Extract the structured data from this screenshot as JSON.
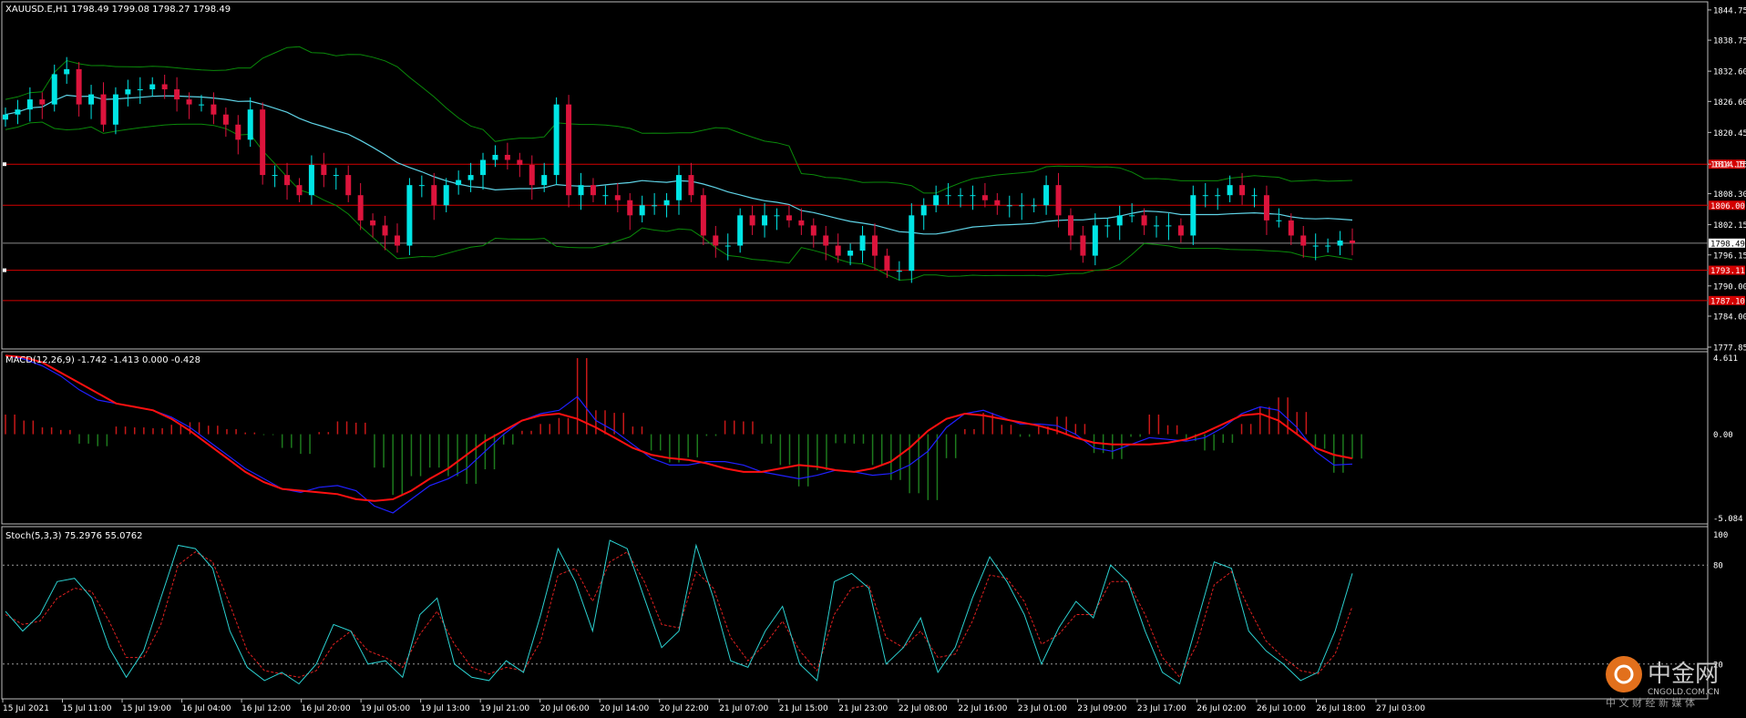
{
  "main_panel": {
    "header": "XAUUSD.E,H1  1798.49 1799.08 1798.27 1798.49",
    "price_axis": [
      "1844.75",
      "1838.75",
      "1832.60",
      "1826.60",
      "1820.45",
      "1814.15",
      "1808.30",
      "1802.15",
      "1796.15",
      "1790.00",
      "1784.00",
      "1777.85"
    ],
    "current_price": "1798.49",
    "levels": [
      {
        "label": "1814.15",
        "value": 1814.15
      },
      {
        "label": "1806.00",
        "value": 1806.0
      },
      {
        "label": "1793.11",
        "value": 1793.11
      },
      {
        "label": "1787.10",
        "value": 1787.1
      }
    ]
  },
  "macd_panel": {
    "header": "MACD(12,26,9) -1.742 -1.413 0.000 -0.428",
    "axis": [
      "4.611",
      "0.00",
      "-5.084"
    ]
  },
  "stoch_panel": {
    "header": "Stoch(5,3,3) 75.2976 55.0762",
    "axis": [
      "100",
      "80",
      "20"
    ]
  },
  "time_axis": [
    "15 Jul 2021",
    "15 Jul 11:00",
    "15 Jul 19:00",
    "16 Jul 04:00",
    "16 Jul 12:00",
    "16 Jul 20:00",
    "19 Jul 05:00",
    "19 Jul 13:00",
    "19 Jul 21:00",
    "20 Jul 06:00",
    "20 Jul 14:00",
    "20 Jul 22:00",
    "21 Jul 07:00",
    "21 Jul 15:00",
    "21 Jul 23:00",
    "22 Jul 08:00",
    "22 Jul 16:00",
    "23 Jul 01:00",
    "23 Jul 09:00",
    "23 Jul 17:00",
    "26 Jul 02:00",
    "26 Jul 10:00",
    "26 Jul 18:00",
    "27 Jul 03:00"
  ],
  "watermark": {
    "cn": "中金网",
    "en": "CNGOLD.COM.CN",
    "sub": "中 文 财 经 新 媒 体"
  },
  "colors": {
    "bull": "#00e5e5",
    "bear": "#dc143c",
    "bands": "#0a8a0a",
    "ma": "#5fd3e6",
    "level": "#d40000",
    "macd_pos": "#c81818",
    "macd_neg": "#1d7a1d",
    "macd_line": "#2020ff",
    "signal": "#ff1010",
    "stoch_main": "#2bd0d0",
    "stoch_signal": "#e02020"
  },
  "chart_data": [
    {
      "type": "candlestick",
      "title": "XAUUSD.E,H1",
      "ylim": [
        1777.85,
        1846.0
      ],
      "closes": [
        1824,
        1825,
        1827,
        1826,
        1832,
        1833,
        1826,
        1828,
        1822,
        1828,
        1829,
        1829,
        1830,
        1829,
        1827,
        1826,
        1826,
        1824,
        1822,
        1819,
        1825,
        1812,
        1812,
        1810,
        1808,
        1814,
        1812,
        1812,
        1808,
        1803,
        1802,
        1800,
        1798,
        1810,
        1810,
        1806,
        1810,
        1811,
        1812,
        1815,
        1816,
        1815,
        1814,
        1810,
        1812,
        1826,
        1808,
        1810,
        1808,
        1808,
        1807,
        1804,
        1806,
        1806,
        1807,
        1812,
        1808,
        1800,
        1798,
        1798,
        1804,
        1802,
        1804,
        1804,
        1803,
        1802,
        1800,
        1798,
        1796,
        1797,
        1800,
        1796,
        1793,
        1793,
        1804,
        1806,
        1808,
        1808,
        1808,
        1808,
        1807,
        1806,
        1806,
        1806,
        1806,
        1810,
        1804,
        1800,
        1796,
        1802,
        1802,
        1804,
        1804,
        1802,
        1802,
        1802,
        1800,
        1808,
        1808,
        1808,
        1810,
        1808,
        1808,
        1803,
        1803,
        1800,
        1798,
        1798,
        1798,
        1799,
        1798.49
      ],
      "notes": "hourly candles; values read from price axis"
    },
    {
      "type": "line",
      "title": "MACD(12,26,9)",
      "ylim": [
        -5.084,
        4.611
      ],
      "macd": [
        4.6,
        4.4,
        4.0,
        3.4,
        2.6,
        2.0,
        1.8,
        1.6,
        1.4,
        1.0,
        0.4,
        -0.4,
        -1.2,
        -2.0,
        -2.6,
        -3.2,
        -3.4,
        -3.1,
        -3.0,
        -3.3,
        -4.2,
        -4.6,
        -3.8,
        -3.0,
        -2.6,
        -2.0,
        -1.0,
        0.0,
        0.8,
        1.2,
        1.4,
        2.2,
        0.8,
        0.2,
        -0.6,
        -1.4,
        -1.8,
        -1.8,
        -1.6,
        -1.6,
        -1.8,
        -2.2,
        -2.4,
        -2.6,
        -2.4,
        -2.1,
        -2.2,
        -2.4,
        -2.3,
        -1.8,
        -1.0,
        0.4,
        1.2,
        1.4,
        1.0,
        0.6,
        0.6,
        0.5,
        0.0,
        -0.8,
        -1.0,
        -0.6,
        -0.2,
        -0.3,
        -0.4,
        -0.2,
        0.4,
        1.2,
        1.6,
        1.4,
        0.4,
        -1.0,
        -1.8,
        -1.742
      ],
      "signal": [
        4.6,
        4.5,
        4.2,
        3.6,
        3.0,
        2.4,
        1.8,
        1.6,
        1.4,
        0.9,
        0.2,
        -0.6,
        -1.4,
        -2.2,
        -2.8,
        -3.2,
        -3.3,
        -3.4,
        -3.5,
        -3.8,
        -3.9,
        -3.8,
        -3.3,
        -2.6,
        -2.0,
        -1.2,
        -0.4,
        0.2,
        0.8,
        1.1,
        1.2,
        0.9,
        0.4,
        -0.2,
        -0.8,
        -1.2,
        -1.4,
        -1.5,
        -1.7,
        -2.0,
        -2.2,
        -2.2,
        -2.0,
        -1.8,
        -1.9,
        -2.1,
        -2.2,
        -2.0,
        -1.6,
        -0.8,
        0.2,
        0.9,
        1.2,
        1.1,
        0.9,
        0.7,
        0.5,
        0.2,
        -0.2,
        -0.5,
        -0.6,
        -0.6,
        -0.6,
        -0.5,
        -0.3,
        0.1,
        0.6,
        1.1,
        1.2,
        0.8,
        0.0,
        -0.8,
        -1.2,
        -1.413
      ]
    },
    {
      "type": "line",
      "title": "Stoch(5,3,3)",
      "ylim": [
        0,
        100
      ],
      "main": [
        52,
        40,
        50,
        70,
        72,
        60,
        30,
        12,
        28,
        60,
        92,
        90,
        78,
        40,
        18,
        10,
        15,
        8,
        20,
        44,
        40,
        20,
        22,
        12,
        50,
        60,
        20,
        12,
        10,
        22,
        15,
        50,
        90,
        70,
        40,
        95,
        90,
        60,
        30,
        40,
        92,
        60,
        22,
        18,
        40,
        55,
        20,
        10,
        70,
        75,
        66,
        20,
        30,
        48,
        15,
        30,
        60,
        85,
        70,
        50,
        20,
        42,
        58,
        48,
        80,
        70,
        40,
        15,
        8,
        45,
        82,
        78,
        40,
        28,
        20,
        10,
        15,
        40,
        75
      ],
      "signal": [
        50,
        44,
        46,
        60,
        66,
        64,
        46,
        24,
        24,
        44,
        80,
        88,
        82,
        56,
        28,
        16,
        14,
        12,
        16,
        32,
        40,
        28,
        24,
        18,
        38,
        52,
        32,
        18,
        14,
        18,
        16,
        34,
        74,
        78,
        58,
        82,
        88,
        70,
        44,
        42,
        76,
        66,
        36,
        22,
        32,
        46,
        28,
        16,
        50,
        66,
        68,
        36,
        30,
        40,
        24,
        26,
        46,
        74,
        72,
        58,
        32,
        38,
        50,
        50,
        70,
        70,
        50,
        24,
        12,
        32,
        68,
        76,
        54,
        34,
        24,
        16,
        14,
        26,
        55
      ]
    }
  ]
}
